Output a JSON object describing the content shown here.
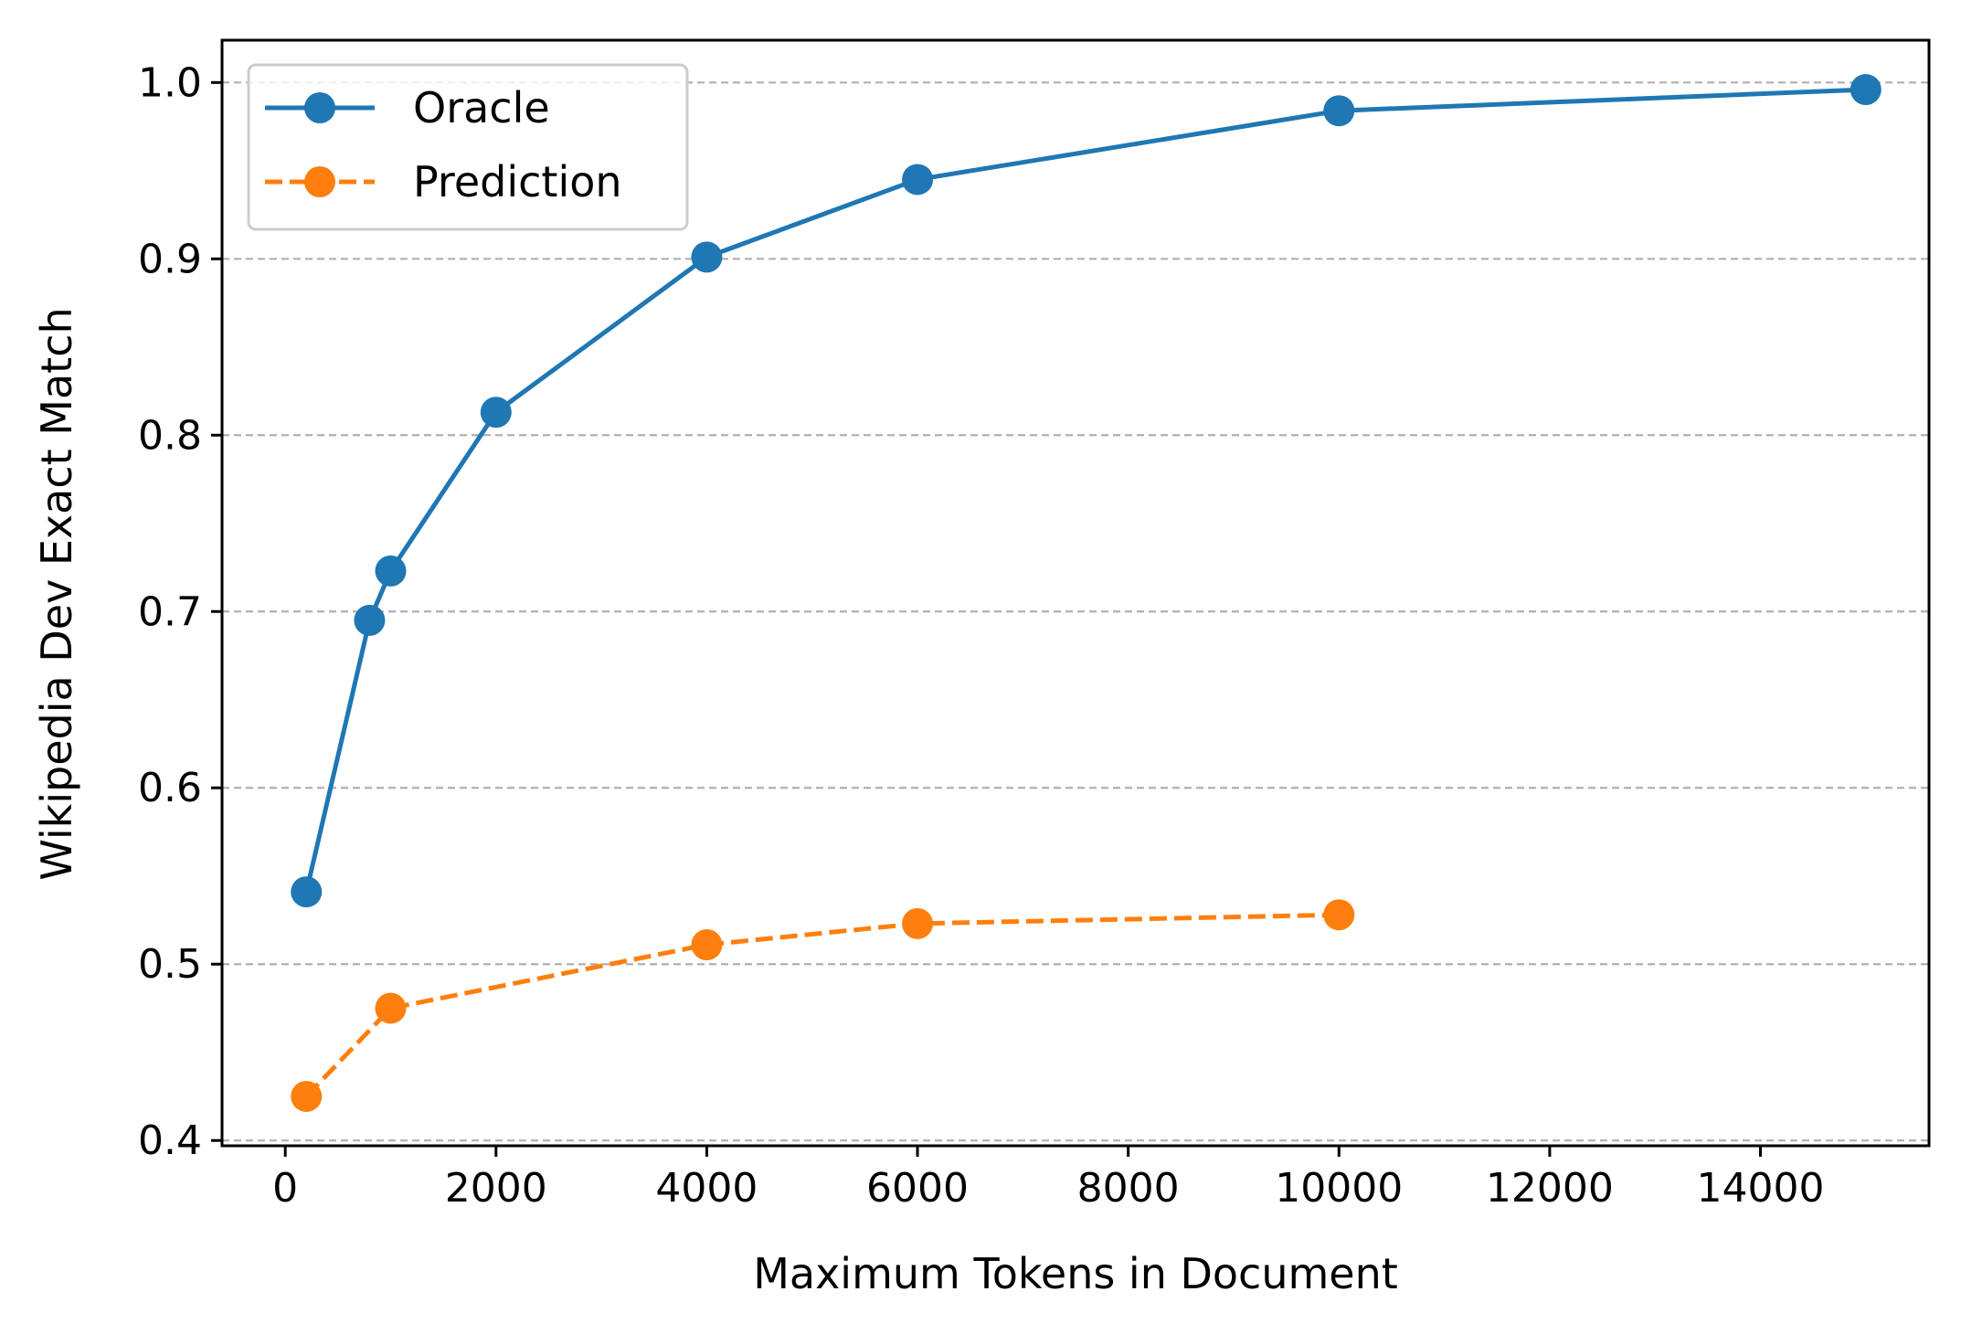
{
  "chart_data": {
    "type": "line",
    "xlabel": "Maximum Tokens in Document",
    "ylabel": "Wikipedia Dev Exact Match",
    "xlim": [
      -600,
      15600
    ],
    "ylim": [
      0.397,
      1.024
    ],
    "xticks": [
      0,
      2000,
      4000,
      6000,
      8000,
      10000,
      12000,
      14000
    ],
    "xtick_labels": [
      "0",
      "2000",
      "4000",
      "6000",
      "8000",
      "10000",
      "12000",
      "14000"
    ],
    "yticks": [
      0.4,
      0.5,
      0.6,
      0.7,
      0.8,
      0.9,
      1.0
    ],
    "ytick_labels": [
      "0.4",
      "0.5",
      "0.6",
      "0.7",
      "0.8",
      "0.9",
      "1.0"
    ],
    "grid": "horizontal dashed",
    "legend_position": "top-left",
    "series": [
      {
        "name": "Oracle",
        "color": "#1f77b4",
        "line_style": "solid",
        "marker": "circle",
        "x": [
          200,
          800,
          1000,
          2000,
          4000,
          6000,
          10000,
          15000
        ],
        "y": [
          0.541,
          0.695,
          0.723,
          0.813,
          0.901,
          0.945,
          0.984,
          0.996
        ]
      },
      {
        "name": "Prediction",
        "color": "#ff7f0e",
        "line_style": "dashed",
        "marker": "circle",
        "x": [
          200,
          1000,
          4000,
          6000,
          10000
        ],
        "y": [
          0.425,
          0.475,
          0.511,
          0.523,
          0.528
        ]
      }
    ]
  }
}
